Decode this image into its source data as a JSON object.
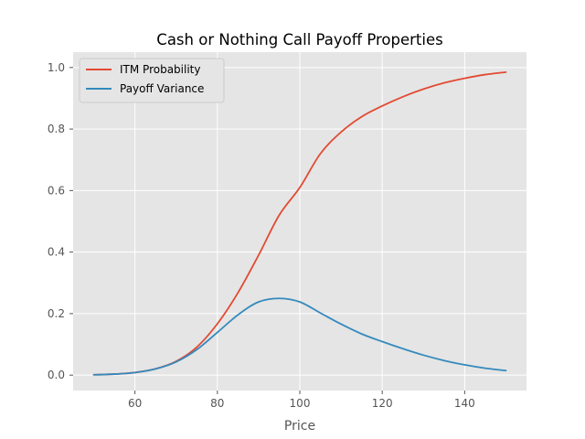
{
  "chart_data": {
    "type": "line",
    "title": "Cash or Nothing Call Payoff Properties",
    "xlabel": "Price",
    "ylabel": "",
    "xlim": [
      45,
      155
    ],
    "ylim": [
      -0.05,
      1.05
    ],
    "xticks": [
      60,
      80,
      100,
      120,
      140
    ],
    "yticks": [
      0.0,
      0.2,
      0.4,
      0.6,
      0.8,
      1.0
    ],
    "xtick_labels": [
      "60",
      "80",
      "100",
      "120",
      "140"
    ],
    "ytick_labels": [
      "0.0",
      "0.2",
      "0.4",
      "0.6",
      "0.8",
      "1.0"
    ],
    "grid": true,
    "legend": "top-left",
    "x": [
      50,
      55,
      60,
      65,
      70,
      75,
      80,
      85,
      90,
      95,
      100,
      105,
      110,
      115,
      120,
      125,
      130,
      135,
      140,
      145,
      150
    ],
    "series": [
      {
        "name": "ITM Probability",
        "color": "#E24A33",
        "values": [
          0.0012,
          0.0033,
          0.0085,
          0.0205,
          0.045,
          0.091,
          0.167,
          0.268,
          0.39,
          0.52,
          0.61,
          0.72,
          0.79,
          0.84,
          0.875,
          0.905,
          0.93,
          0.95,
          0.965,
          0.977,
          0.985
        ]
      },
      {
        "name": "Payoff Variance",
        "color": "#348ABD",
        "values": [
          0.0012,
          0.0033,
          0.0084,
          0.0201,
          0.043,
          0.083,
          0.139,
          0.196,
          0.238,
          0.2496,
          0.238,
          0.202,
          0.166,
          0.134,
          0.109,
          0.086,
          0.065,
          0.0475,
          0.0335,
          0.0225,
          0.0148
        ]
      }
    ]
  },
  "colors": {
    "plot_background": "#E5E5E5",
    "grid": "#FFFFFF"
  }
}
